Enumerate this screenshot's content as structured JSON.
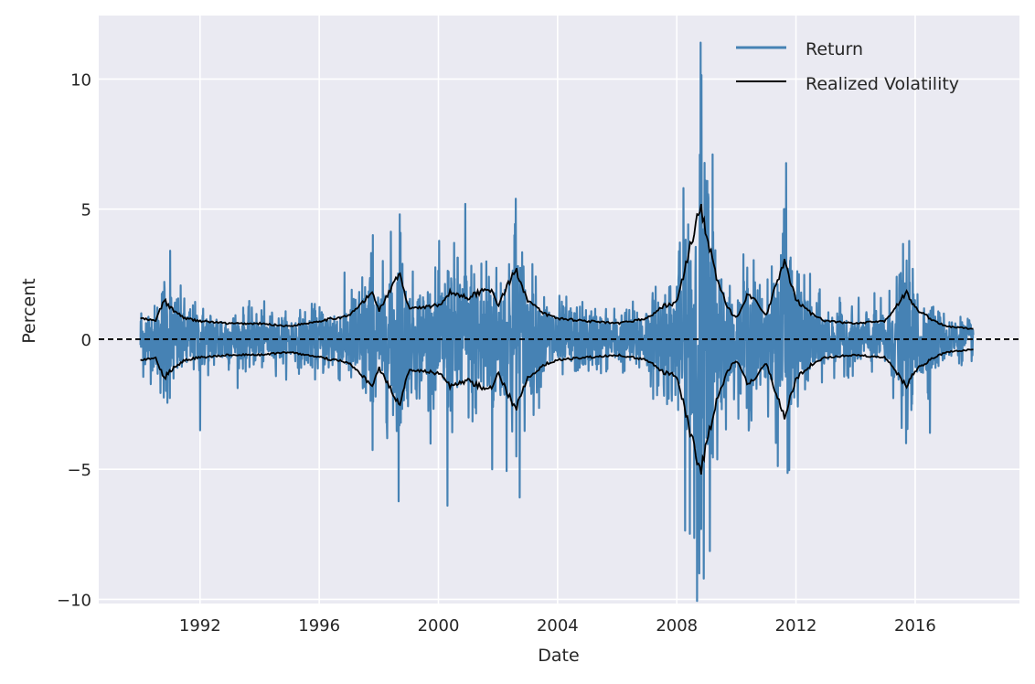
{
  "chart_data": {
    "type": "line",
    "title": "",
    "xlabel": "Date",
    "ylabel": "Percent",
    "xlim": [
      1988.6,
      2019.5
    ],
    "ylim": [
      -10.16,
      12.44
    ],
    "x_ticks": [
      1992,
      1996,
      2000,
      2004,
      2008,
      2012,
      2016
    ],
    "x_tick_labels": [
      "1992",
      "1996",
      "2000",
      "2004",
      "2008",
      "2012",
      "2016"
    ],
    "y_ticks": [
      -10,
      -5,
      0,
      5,
      10
    ],
    "y_tick_labels": [
      "−10",
      "−5",
      "0",
      "5",
      "10"
    ],
    "grid": true,
    "legend": {
      "placement": "top-right",
      "entries": [
        "Return",
        "Realized Volatility"
      ]
    },
    "reference_line": {
      "y": 0,
      "style": "dashed",
      "color": "#000000"
    },
    "colors": {
      "Return": "#4682b4",
      "Realized Volatility": "#000000",
      "background": "#eaeaf2"
    },
    "series": [
      {
        "name": "Realized Volatility",
        "note": "plotted as +/- band",
        "x": [
          1990.0,
          1990.5,
          1990.8,
          1991.0,
          1991.5,
          1992.0,
          1993.0,
          1994.0,
          1995.0,
          1996.0,
          1997.0,
          1997.8,
          1998.0,
          1998.7,
          1999.0,
          2000.0,
          2000.4,
          2001.0,
          2001.7,
          2002.0,
          2002.6,
          2003.0,
          2003.5,
          2004.0,
          2005.0,
          2006.0,
          2007.0,
          2007.6,
          2008.0,
          2008.8,
          2009.0,
          2009.3,
          2009.7,
          2010.0,
          2010.4,
          2011.0,
          2011.6,
          2012.0,
          2012.5,
          2013.0,
          2014.0,
          2015.0,
          2015.7,
          2016.0,
          2016.5,
          2017.0,
          2017.9
        ],
        "values": [
          0.8,
          0.7,
          1.5,
          1.2,
          0.8,
          0.7,
          0.6,
          0.6,
          0.5,
          0.7,
          0.9,
          1.8,
          1.1,
          2.5,
          1.2,
          1.3,
          1.8,
          1.6,
          2.0,
          1.3,
          2.7,
          1.5,
          1.0,
          0.8,
          0.7,
          0.6,
          0.8,
          1.3,
          1.4,
          5.2,
          4.0,
          2.5,
          1.2,
          0.8,
          1.8,
          0.9,
          3.0,
          1.5,
          1.0,
          0.7,
          0.6,
          0.7,
          1.8,
          1.2,
          0.8,
          0.5,
          0.4
        ]
      },
      {
        "name": "Return",
        "note": "daily returns; extreme observations listed",
        "extremes_x": [
          1991.0,
          1992.0,
          1997.8,
          1997.8,
          1998.7,
          1998.7,
          2000.3,
          2000.9,
          2001.8,
          2002.6,
          2008.75,
          2008.8,
          2008.9,
          2009.2,
          2011.6,
          2011.6,
          2015.7,
          2015.7,
          2016.5
        ],
        "extremes_y": [
          3.4,
          -3.5,
          -6.6,
          4.0,
          -6.6,
          4.8,
          -6.4,
          5.2,
          -5.0,
          5.4,
          -9.0,
          11.4,
          -9.2,
          7.1,
          -7.0,
          5.0,
          3.6,
          -4.0,
          -3.6
        ]
      }
    ]
  }
}
